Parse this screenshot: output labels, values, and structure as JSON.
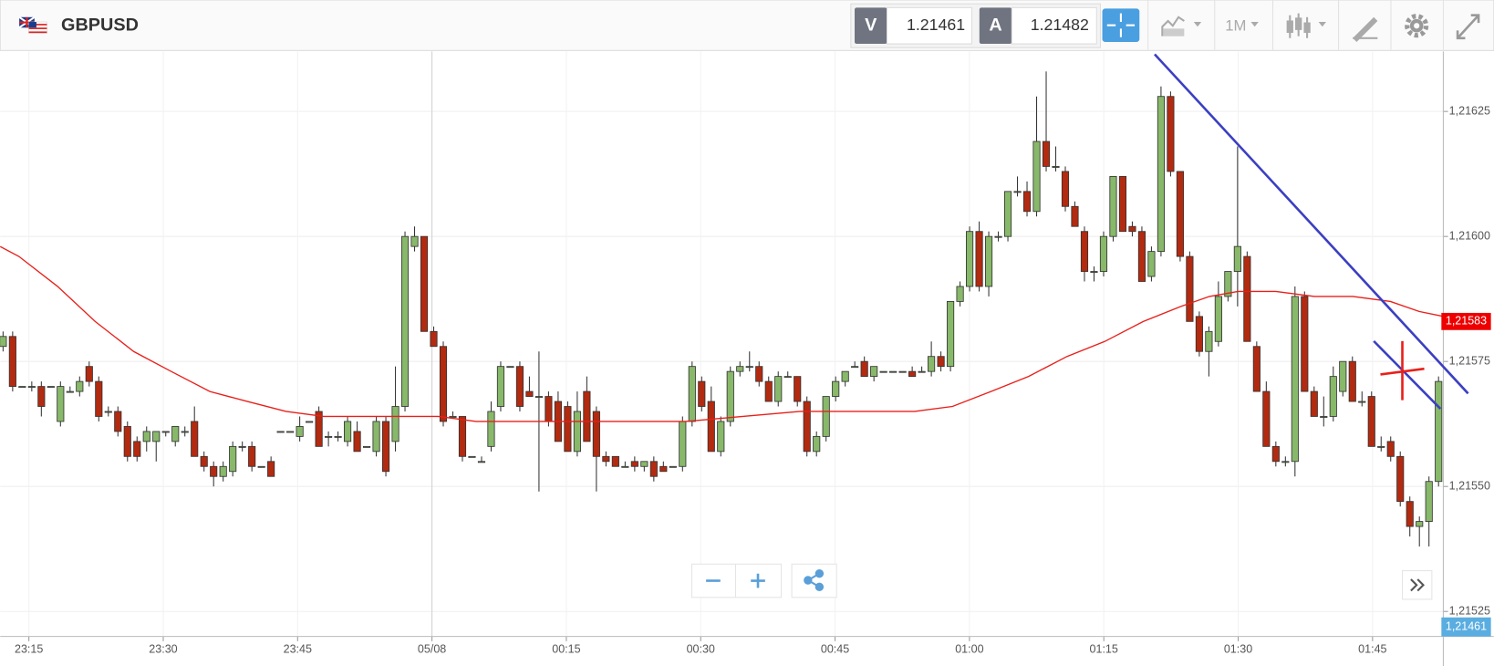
{
  "header": {
    "symbol": "GBPUSD",
    "bid_label": "V",
    "bid": 1.21461,
    "ask_label": "A",
    "ask": 1.21482,
    "timeframe": "1M"
  },
  "chart_data": {
    "type": "candlestick",
    "up_color": "#88b86a",
    "down_color": "#b22a10",
    "ylim": [
      1.2152,
      1.21637
    ],
    "yticks": [
      {
        "value": 1.21625,
        "label": "1,21625"
      },
      {
        "value": 1.216,
        "label": "1,21600"
      },
      {
        "value": 1.21575,
        "label": "1,21575"
      },
      {
        "value": 1.2155,
        "label": "1,21550"
      },
      {
        "value": 1.21525,
        "label": "1,21525"
      }
    ],
    "xlim": [
      11.8,
      172.9
    ],
    "xticks": [
      {
        "value": 15,
        "label": "23:15"
      },
      {
        "value": 30,
        "label": "23:30"
      },
      {
        "value": 45,
        "label": "23:45"
      },
      {
        "value": 60,
        "label": "05/08"
      },
      {
        "value": 75,
        "label": "00:15"
      },
      {
        "value": 90,
        "label": "00:30"
      },
      {
        "value": 105,
        "label": "00:45"
      },
      {
        "value": 120,
        "label": "01:00"
      },
      {
        "value": 135,
        "label": "01:15"
      },
      {
        "value": 150,
        "label": "01:30"
      },
      {
        "value": 165,
        "label": "01:45"
      }
    ],
    "grid": true,
    "candles": [
      [
        1.21578,
        1.21581,
        1.21577,
        1.2158
      ],
      [
        1.2158,
        1.21581,
        1.21569,
        1.2157
      ],
      [
        1.2157,
        1.2157,
        1.2157,
        1.2157
      ],
      [
        1.2157,
        1.21571,
        1.21569,
        1.2157
      ],
      [
        1.2157,
        1.21571,
        1.21564,
        1.21566
      ],
      [
        1.2157,
        1.2157,
        1.2157,
        1.2157
      ],
      [
        1.21563,
        1.21571,
        1.21562,
        1.2157
      ],
      [
        1.21569,
        1.2157,
        1.21569,
        1.21569
      ],
      [
        1.21569,
        1.21572,
        1.21568,
        1.21571
      ],
      [
        1.21574,
        1.21575,
        1.2157,
        1.21571
      ],
      [
        1.21571,
        1.21572,
        1.21563,
        1.21564
      ],
      [
        1.21565,
        1.21566,
        1.21564,
        1.21565
      ],
      [
        1.21565,
        1.21566,
        1.2156,
        1.21561
      ],
      [
        1.21562,
        1.21563,
        1.21555,
        1.21556
      ],
      [
        1.21559,
        1.2156,
        1.21555,
        1.21556
      ],
      [
        1.21559,
        1.21562,
        1.21557,
        1.21561
      ],
      [
        1.21559,
        1.21561,
        1.21555,
        1.21561
      ],
      [
        1.21561,
        1.21561,
        1.2156,
        1.21561
      ],
      [
        1.21559,
        1.21562,
        1.21558,
        1.21562
      ],
      [
        1.21561,
        1.21562,
        1.2156,
        1.21561
      ],
      [
        1.21563,
        1.21566,
        1.21556,
        1.21556
      ],
      [
        1.21556,
        1.21557,
        1.21553,
        1.21554
      ],
      [
        1.21554,
        1.21555,
        1.2155,
        1.21552
      ],
      [
        1.21552,
        1.21555,
        1.21551,
        1.21554
      ],
      [
        1.21553,
        1.21559,
        1.21552,
        1.21558
      ],
      [
        1.21558,
        1.21559,
        1.21557,
        1.21558
      ],
      [
        1.21558,
        1.21559,
        1.21553,
        1.21554
      ],
      [
        1.21554,
        1.21554,
        1.21554,
        1.21554
      ],
      [
        1.21555,
        1.21556,
        1.21552,
        1.21552
      ],
      [
        1.21561,
        1.21561,
        1.21561,
        1.21561
      ],
      [
        1.21561,
        1.21561,
        1.21561,
        1.21561
      ],
      [
        1.2156,
        1.21564,
        1.21559,
        1.21562
      ],
      [
        1.21563,
        1.21563,
        1.21563,
        1.21563
      ],
      [
        1.21565,
        1.21566,
        1.21558,
        1.21558
      ],
      [
        1.2156,
        1.21561,
        1.21558,
        1.2156
      ],
      [
        1.2156,
        1.21561,
        1.21559,
        1.2156
      ],
      [
        1.21559,
        1.21564,
        1.21558,
        1.21563
      ],
      [
        1.21561,
        1.21563,
        1.21557,
        1.21557
      ],
      [
        1.21558,
        1.21558,
        1.21558,
        1.21558
      ],
      [
        1.21557,
        1.21564,
        1.21556,
        1.21563
      ],
      [
        1.21563,
        1.21564,
        1.21552,
        1.21553
      ],
      [
        1.21559,
        1.21574,
        1.21557,
        1.21566
      ],
      [
        1.21566,
        1.21601,
        1.21565,
        1.216
      ],
      [
        1.21598,
        1.21602,
        1.21597,
        1.216
      ],
      [
        1.216,
        1.216,
        1.21581,
        1.21581
      ],
      [
        1.21581,
        1.21582,
        1.21578,
        1.21578
      ],
      [
        1.21578,
        1.21579,
        1.21562,
        1.21563
      ],
      [
        1.21564,
        1.21565,
        1.21564,
        1.21564
      ],
      [
        1.21564,
        1.21564,
        1.21555,
        1.21556
      ],
      [
        1.21556,
        1.21556,
        1.21556,
        1.21556
      ],
      [
        1.21555,
        1.21556,
        1.21555,
        1.21555
      ],
      [
        1.21558,
        1.21567,
        1.21557,
        1.21565
      ],
      [
        1.21566,
        1.21575,
        1.21565,
        1.21574
      ],
      [
        1.21574,
        1.21574,
        1.21574,
        1.21574
      ],
      [
        1.21574,
        1.21575,
        1.21565,
        1.21566
      ],
      [
        1.21569,
        1.21572,
        1.21568,
        1.21568
      ],
      [
        1.21568,
        1.21577,
        1.21549,
        1.21568
      ],
      [
        1.21568,
        1.21569,
        1.21562,
        1.21563
      ],
      [
        1.21567,
        1.21569,
        1.21559,
        1.21559
      ],
      [
        1.21566,
        1.21567,
        1.21557,
        1.21557
      ],
      [
        1.21557,
        1.21569,
        1.21556,
        1.21565
      ],
      [
        1.21569,
        1.21572,
        1.21559,
        1.21559
      ],
      [
        1.21565,
        1.21566,
        1.21549,
        1.21556
      ],
      [
        1.21556,
        1.21557,
        1.21554,
        1.21555
      ],
      [
        1.21556,
        1.21556,
        1.21554,
        1.21554
      ],
      [
        1.21554,
        1.21555,
        1.21554,
        1.21554
      ],
      [
        1.21555,
        1.21556,
        1.21553,
        1.21554
      ],
      [
        1.21554,
        1.21555,
        1.21553,
        1.21555
      ],
      [
        1.21555,
        1.21556,
        1.21551,
        1.21552
      ],
      [
        1.21554,
        1.21555,
        1.21553,
        1.21553
      ],
      [
        1.21554,
        1.21554,
        1.21554,
        1.21554
      ],
      [
        1.21554,
        1.21564,
        1.21553,
        1.21563
      ],
      [
        1.21563,
        1.21575,
        1.21562,
        1.21574
      ],
      [
        1.21571,
        1.21572,
        1.21565,
        1.21566
      ],
      [
        1.21567,
        1.2157,
        1.21557,
        1.21557
      ],
      [
        1.21557,
        1.21564,
        1.21556,
        1.21563
      ],
      [
        1.21563,
        1.21574,
        1.21562,
        1.21573
      ],
      [
        1.21573,
        1.21575,
        1.21572,
        1.21574
      ],
      [
        1.21574,
        1.21577,
        1.21573,
        1.21574
      ],
      [
        1.21574,
        1.21575,
        1.2157,
        1.21571
      ],
      [
        1.21571,
        1.21572,
        1.21567,
        1.21567
      ],
      [
        1.21567,
        1.21573,
        1.21566,
        1.21572
      ],
      [
        1.21572,
        1.21573,
        1.21572,
        1.21572
      ],
      [
        1.21572,
        1.21572,
        1.21566,
        1.21567
      ],
      [
        1.21567,
        1.21568,
        1.21556,
        1.21557
      ],
      [
        1.21557,
        1.21561,
        1.21556,
        1.2156
      ],
      [
        1.2156,
        1.21568,
        1.21559,
        1.21568
      ],
      [
        1.21568,
        1.21572,
        1.21567,
        1.21571
      ],
      [
        1.21571,
        1.21573,
        1.2157,
        1.21573
      ],
      [
        1.21574,
        1.21575,
        1.21574,
        1.21574
      ],
      [
        1.21575,
        1.21576,
        1.21572,
        1.21572
      ],
      [
        1.21572,
        1.21574,
        1.21571,
        1.21574
      ],
      [
        1.21573,
        1.21573,
        1.21573,
        1.21573
      ],
      [
        1.21573,
        1.21573,
        1.21573,
        1.21573
      ],
      [
        1.21573,
        1.21573,
        1.21573,
        1.21573
      ],
      [
        1.21573,
        1.21574,
        1.21572,
        1.21572
      ],
      [
        1.21573,
        1.21574,
        1.21573,
        1.21573
      ],
      [
        1.21573,
        1.21579,
        1.21572,
        1.21576
      ],
      [
        1.21576,
        1.21577,
        1.21573,
        1.21574
      ],
      [
        1.21574,
        1.21587,
        1.21573,
        1.21587
      ],
      [
        1.21587,
        1.21591,
        1.21586,
        1.2159
      ],
      [
        1.2159,
        1.21602,
        1.21589,
        1.21601
      ],
      [
        1.21601,
        1.21603,
        1.21589,
        1.2159
      ],
      [
        1.2159,
        1.21601,
        1.21588,
        1.216
      ],
      [
        1.216,
        1.21601,
        1.21599,
        1.216
      ],
      [
        1.216,
        1.21609,
        1.21599,
        1.21609
      ],
      [
        1.21609,
        1.21612,
        1.21608,
        1.21609
      ],
      [
        1.21609,
        1.21611,
        1.21604,
        1.21605
      ],
      [
        1.21605,
        1.21628,
        1.21604,
        1.21619
      ],
      [
        1.21619,
        1.21633,
        1.21613,
        1.21614
      ],
      [
        1.21614,
        1.21618,
        1.21613,
        1.21614
      ],
      [
        1.21613,
        1.21614,
        1.21605,
        1.21606
      ],
      [
        1.21606,
        1.21607,
        1.21602,
        1.21602
      ],
      [
        1.21601,
        1.21602,
        1.21591,
        1.21593
      ],
      [
        1.21593,
        1.21594,
        1.21591,
        1.21593
      ],
      [
        1.21593,
        1.21601,
        1.21592,
        1.216
      ],
      [
        1.216,
        1.21612,
        1.21599,
        1.21612
      ],
      [
        1.21612,
        1.21612,
        1.21601,
        1.21601
      ],
      [
        1.21602,
        1.21603,
        1.216,
        1.21601
      ],
      [
        1.21601,
        1.21602,
        1.21591,
        1.21591
      ],
      [
        1.21592,
        1.21598,
        1.21591,
        1.21597
      ],
      [
        1.21597,
        1.2163,
        1.21596,
        1.21628
      ],
      [
        1.21628,
        1.21629,
        1.21612,
        1.21613
      ],
      [
        1.21613,
        1.21613,
        1.21595,
        1.21596
      ],
      [
        1.21596,
        1.21597,
        1.21583,
        1.21583
      ],
      [
        1.21584,
        1.21585,
        1.21576,
        1.21577
      ],
      [
        1.21577,
        1.21582,
        1.21572,
        1.21581
      ],
      [
        1.21579,
        1.21591,
        1.21578,
        1.21588
      ],
      [
        1.21588,
        1.21593,
        1.21587,
        1.21593
      ],
      [
        1.21593,
        1.21618,
        1.21586,
        1.21598
      ],
      [
        1.21596,
        1.21597,
        1.21579,
        1.21579
      ],
      [
        1.21578,
        1.21579,
        1.21569,
        1.21569
      ],
      [
        1.21569,
        1.21571,
        1.21558,
        1.21558
      ],
      [
        1.21558,
        1.21559,
        1.21554,
        1.21555
      ],
      [
        1.21555,
        1.21556,
        1.21554,
        1.21555
      ],
      [
        1.21555,
        1.2159,
        1.21552,
        1.21588
      ],
      [
        1.21588,
        1.21589,
        1.21569,
        1.21569
      ],
      [
        1.21569,
        1.2157,
        1.21564,
        1.21564
      ],
      [
        1.21564,
        1.21568,
        1.21562,
        1.21564
      ],
      [
        1.21564,
        1.21574,
        1.21563,
        1.21572
      ],
      [
        1.21569,
        1.21575,
        1.21568,
        1.21575
      ],
      [
        1.21575,
        1.21576,
        1.21567,
        1.21567
      ],
      [
        1.21567,
        1.21569,
        1.21566,
        1.21567
      ],
      [
        1.21568,
        1.21569,
        1.21558,
        1.21558
      ],
      [
        1.21558,
        1.2156,
        1.21557,
        1.21558
      ],
      [
        1.21559,
        1.2156,
        1.21555,
        1.21556
      ],
      [
        1.21556,
        1.21557,
        1.21546,
        1.21547
      ],
      [
        1.21547,
        1.21548,
        1.2154,
        1.21542
      ],
      [
        1.21542,
        1.21544,
        1.21538,
        1.21543
      ],
      [
        1.21543,
        1.21552,
        1.21538,
        1.21551
      ],
      [
        1.21551,
        1.21572,
        1.2155,
        1.21571
      ]
    ],
    "moving_average": {
      "color": "#e8201a",
      "x": [
        11.8,
        13.9,
        18.2,
        22.4,
        26.7,
        30.9,
        35.2,
        39.4,
        43.7,
        47.9,
        52.2,
        56.4,
        60.7,
        64.9,
        69.2,
        75.6,
        82.0,
        88.3,
        94.7,
        101.1,
        105.3,
        109.6,
        113.9,
        118.1,
        122.4,
        126.6,
        130.9,
        135.1,
        139.4,
        143.6,
        146.8,
        150.0,
        154.2,
        158.5,
        162.8,
        167.0,
        170.2,
        172.9
      ],
      "values": [
        1.21598,
        1.21596,
        1.2159,
        1.21583,
        1.21577,
        1.21573,
        1.21569,
        1.21567,
        1.21565,
        1.21564,
        1.21564,
        1.21564,
        1.21564,
        1.21563,
        1.21563,
        1.21563,
        1.21563,
        1.21563,
        1.21564,
        1.21565,
        1.21565,
        1.21565,
        1.21565,
        1.21566,
        1.21569,
        1.21572,
        1.21576,
        1.21579,
        1.21583,
        1.21586,
        1.21588,
        1.21589,
        1.21589,
        1.21588,
        1.21588,
        1.21587,
        1.21585,
        1.21584
      ]
    },
    "last_ma": {
      "value": 1.21583,
      "label": "1,21583"
    },
    "current_price": {
      "value": 1.21461,
      "label": "1,21461"
    }
  }
}
